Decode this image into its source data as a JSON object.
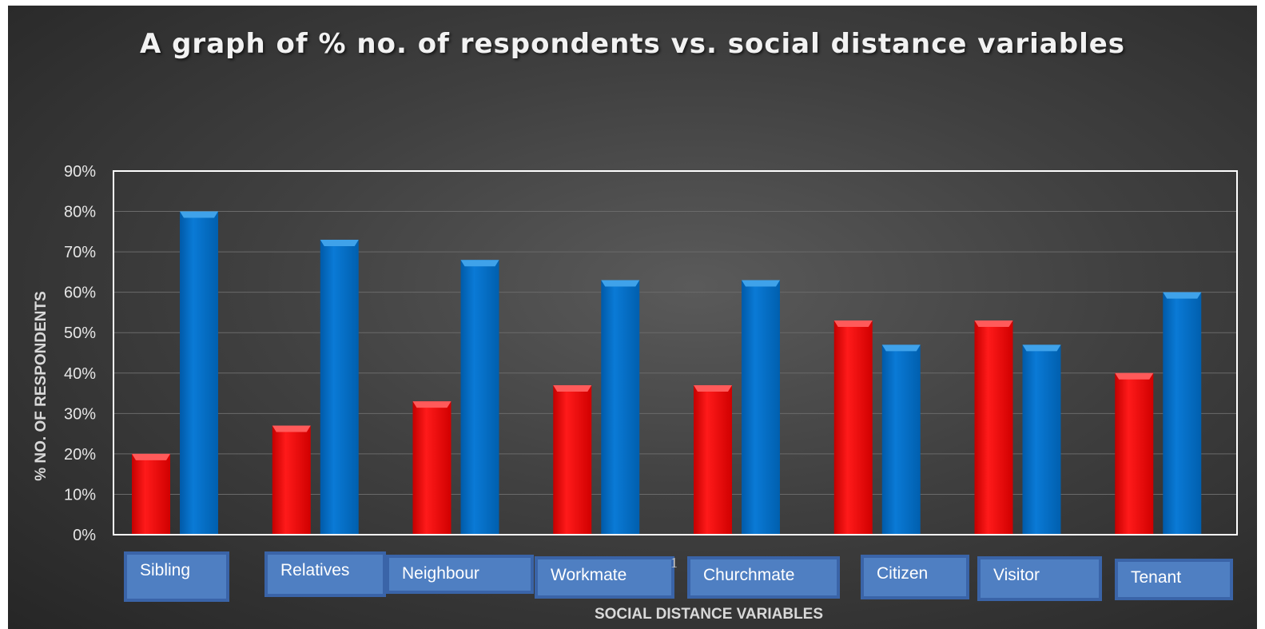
{
  "chart_data": {
    "type": "bar",
    "title": "A graph of % no. of respondents vs. social distance variables",
    "xlabel": "SOCIAL DISTANCE VARIABLES",
    "ylabel": "% NO. OF RESPONDENTS",
    "categories": [
      "Sibling",
      "Relatives",
      "Neighbour",
      "Workmate",
      "Churchmate",
      "Citizen",
      "Visitor",
      "Tenant"
    ],
    "series": [
      {
        "color": "#ff0000",
        "values": [
          20,
          27,
          33,
          37,
          37,
          53,
          53,
          40
        ]
      },
      {
        "color": "#0070c8",
        "values": [
          80,
          73,
          68,
          63,
          63,
          47,
          47,
          60
        ]
      }
    ],
    "yticks": [
      "0%",
      "10%",
      "20%",
      "30%",
      "40%",
      "50%",
      "60%",
      "70%",
      "80%",
      "90%"
    ],
    "ylim": [
      0,
      90
    ],
    "grid": true,
    "legend": "none"
  },
  "page_marker": "1"
}
